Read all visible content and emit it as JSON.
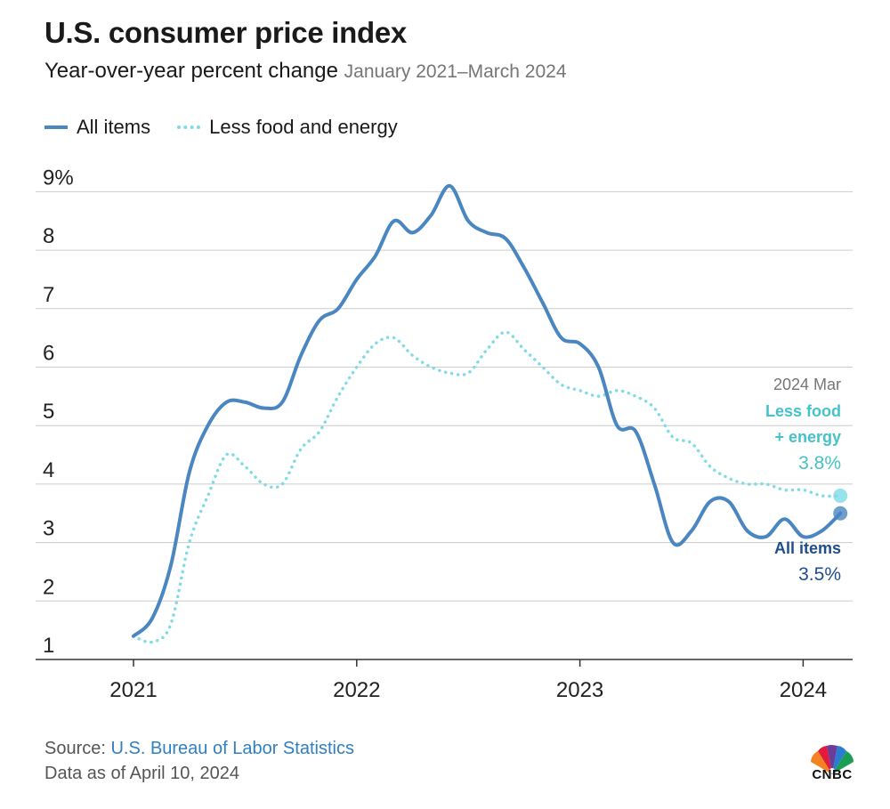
{
  "header": {
    "title": "U.S. consumer price index",
    "subtitle": "Year-over-year percent change",
    "date_range": "January 2021–March 2024"
  },
  "legend": {
    "all_items": "All items",
    "core": "Less food and energy"
  },
  "annotations": {
    "period": "2024 Mar",
    "core_label_line1": "Less food",
    "core_label_line2": "+ energy",
    "core_value": "3.8%",
    "all_label": "All items",
    "all_value": "3.5%"
  },
  "footer": {
    "source_prefix": "Source: ",
    "source_name": "U.S. Bureau of Labor Statistics",
    "as_of": "Data as of April 10, 2024"
  },
  "logo": {
    "text": "CNBC"
  },
  "colors": {
    "all_items": "#4a86c0",
    "core": "#7fdbe6",
    "core_label": "#45c2c8",
    "all_label": "#1f4e8c",
    "grid": "#cccccc"
  },
  "chart_data": {
    "type": "line",
    "title": "U.S. consumer price index",
    "subtitle": "Year-over-year percent change",
    "xlabel": "",
    "ylabel": "",
    "x_ticks": [
      "2021",
      "2022",
      "2023",
      "2024"
    ],
    "y_ticks": [
      "1",
      "2",
      "3",
      "4",
      "5",
      "6",
      "7",
      "8",
      "9%"
    ],
    "ylim": [
      1,
      9
    ],
    "x_start": "2021-01",
    "grid": true,
    "series": [
      {
        "name": "All items",
        "style": "solid",
        "values": [
          1.4,
          1.7,
          2.6,
          4.2,
          5.0,
          5.4,
          5.4,
          5.3,
          5.4,
          6.2,
          6.8,
          7.0,
          7.5,
          7.9,
          8.5,
          8.3,
          8.6,
          9.1,
          8.5,
          8.3,
          8.2,
          7.7,
          7.1,
          6.5,
          6.4,
          6.0,
          5.0,
          4.9,
          4.0,
          3.0,
          3.2,
          3.7,
          3.7,
          3.2,
          3.1,
          3.4,
          3.1,
          3.2,
          3.5
        ]
      },
      {
        "name": "Less food and energy",
        "style": "dotted",
        "values": [
          1.4,
          1.3,
          1.6,
          3.0,
          3.8,
          4.5,
          4.3,
          4.0,
          4.0,
          4.6,
          4.9,
          5.5,
          6.0,
          6.4,
          6.5,
          6.2,
          6.0,
          5.9,
          5.9,
          6.3,
          6.6,
          6.3,
          6.0,
          5.7,
          5.6,
          5.5,
          5.6,
          5.5,
          5.3,
          4.8,
          4.7,
          4.3,
          4.1,
          4.0,
          4.0,
          3.9,
          3.9,
          3.8,
          3.8
        ]
      }
    ]
  }
}
